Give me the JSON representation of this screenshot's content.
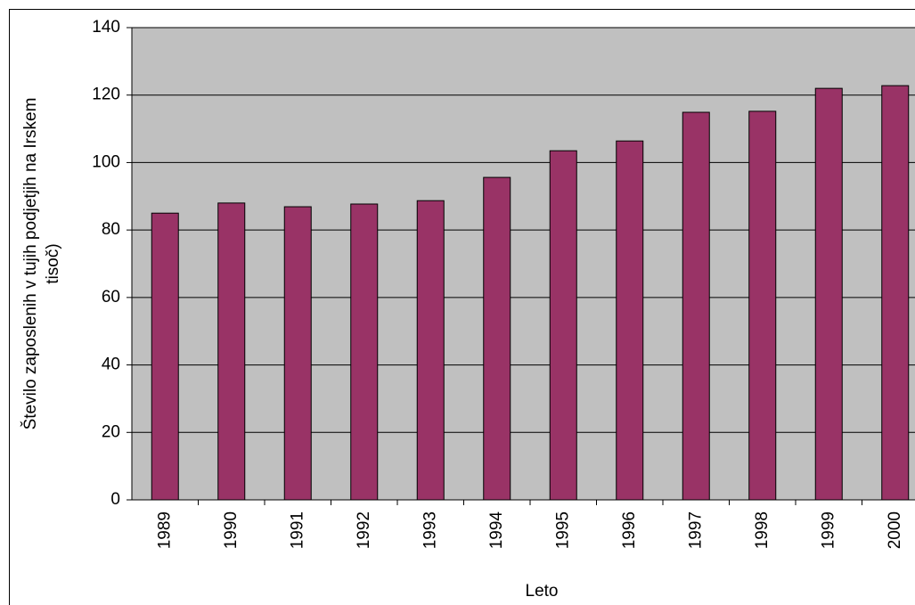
{
  "chart_data": {
    "type": "bar",
    "x_label": "Leto",
    "y_label": [
      "Število zaposlenih v tujih podjetjih na Irskem",
      "tisoč)"
    ],
    "categories": [
      "1989",
      "1990",
      "1991",
      "1992",
      "1993",
      "1994",
      "1995",
      "1996",
      "1997",
      "1998",
      "1999",
      "2000"
    ],
    "values": [
      85,
      88,
      86.9,
      87.7,
      88.7,
      95.6,
      103.5,
      106.4,
      114.9,
      115.2,
      122,
      122.8
    ],
    "color": "#993366",
    "ylim": [
      0,
      140
    ],
    "yticks": [
      0,
      20,
      40,
      60,
      80,
      100,
      120,
      140
    ],
    "grid": true
  }
}
